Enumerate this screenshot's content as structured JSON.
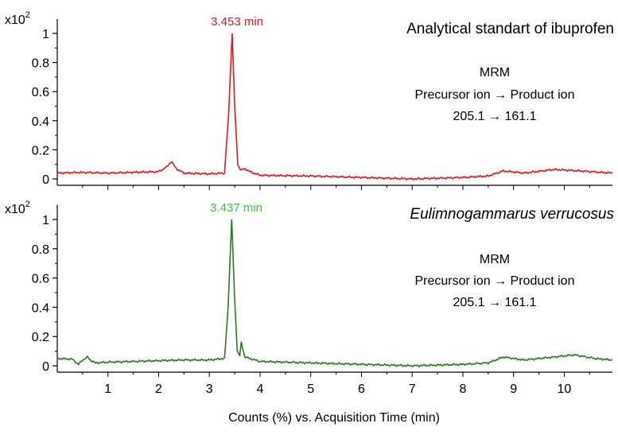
{
  "chart_data": [
    {
      "type": "line",
      "title": "Analytical standart of ibuprofen",
      "annotation_lines": [
        "MRM",
        "Precursor ion → Product ion",
        "205.1 → 161.1"
      ],
      "peak_label": "3.453 min",
      "peak_time": 3.453,
      "multiplier_base": "x10",
      "multiplier_exp": "2",
      "color": "#e0191b",
      "xlim": [
        0,
        10.95
      ],
      "ylim": [
        -0.05,
        1.1
      ],
      "y_ticks": [
        0,
        0.2,
        0.4,
        0.6,
        0.8,
        1
      ],
      "y_tick_labels": [
        "0",
        "0.2",
        "0.4",
        "0.6",
        "0.8",
        "1"
      ],
      "series": [
        {
          "name": "Analytical standart of ibuprofen",
          "x": [
            0,
            0.5,
            1.0,
            1.5,
            2.0,
            2.15,
            2.25,
            2.35,
            2.5,
            3.0,
            3.3,
            3.38,
            3.45,
            3.5,
            3.56,
            3.62,
            3.7,
            3.8,
            4.0,
            5.0,
            6.0,
            7.0,
            8.0,
            8.5,
            8.8,
            9.2,
            9.8,
            10.3,
            10.95
          ],
          "values": [
            0.04,
            0.045,
            0.04,
            0.045,
            0.05,
            0.08,
            0.12,
            0.07,
            0.04,
            0.035,
            0.04,
            0.45,
            1.0,
            0.5,
            0.1,
            0.06,
            0.07,
            0.05,
            0.025,
            0.02,
            0.01,
            0.0,
            0.01,
            0.02,
            0.055,
            0.04,
            0.065,
            0.055,
            0.04
          ]
        }
      ]
    },
    {
      "type": "line",
      "title": "Eulimnogammarus verrucosus",
      "annotation_lines": [
        "MRM",
        "Precursor ion → Product ion",
        "205.1 → 161.1"
      ],
      "peak_label": "3.437 min",
      "peak_time": 3.437,
      "multiplier_base": "x10",
      "multiplier_exp": "2",
      "color": "#2a7a22",
      "xlim": [
        0,
        10.95
      ],
      "ylim": [
        -0.05,
        1.1
      ],
      "y_ticks": [
        0,
        0.2,
        0.4,
        0.6,
        0.8,
        1
      ],
      "y_tick_labels": [
        "0",
        "0.2",
        "0.4",
        "0.6",
        "0.8",
        "1"
      ],
      "x_ticks": [
        1,
        2,
        3,
        4,
        5,
        6,
        7,
        8,
        9,
        10
      ],
      "x_tick_labels": [
        "1",
        "2",
        "3",
        "4",
        "5",
        "6",
        "7",
        "8",
        "9",
        "10"
      ],
      "xlabel": "Counts (%) vs. Acquisition Time (min)",
      "series": [
        {
          "name": "Eulimnogammarus verrucosus",
          "x": [
            0,
            0.3,
            0.42,
            0.5,
            0.6,
            0.65,
            0.75,
            1.0,
            1.5,
            2.0,
            2.5,
            3.0,
            3.3,
            3.37,
            3.44,
            3.5,
            3.55,
            3.6,
            3.63,
            3.7,
            3.8,
            4.0,
            5.0,
            6.0,
            7.0,
            8.0,
            8.5,
            8.8,
            9.2,
            9.8,
            10.2,
            10.6,
            10.95
          ],
          "values": [
            0.05,
            0.045,
            0.01,
            0.04,
            0.06,
            0.04,
            0.02,
            0.025,
            0.03,
            0.035,
            0.04,
            0.04,
            0.05,
            0.4,
            1.0,
            0.45,
            0.1,
            0.07,
            0.16,
            0.06,
            0.05,
            0.03,
            0.02,
            0.01,
            0.0,
            0.01,
            0.02,
            0.06,
            0.04,
            0.06,
            0.075,
            0.05,
            0.04
          ]
        }
      ]
    }
  ]
}
